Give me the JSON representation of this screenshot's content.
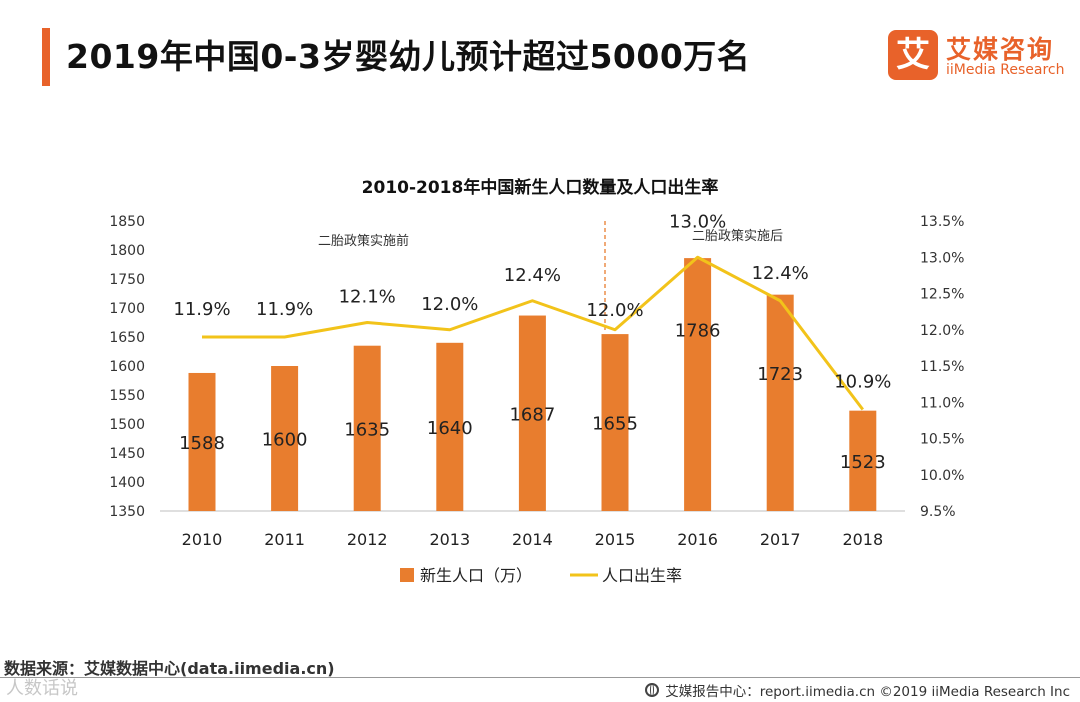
{
  "header": {
    "title": "2019年中国0-3岁婴幼儿预计超过5000万名",
    "accent_color": "#e8622a"
  },
  "logo": {
    "mark": "艾",
    "name": "艾媒咨询",
    "sub": "iiMedia Research",
    "color": "#e8622a"
  },
  "chart_data": {
    "type": "bar",
    "title": "2010-2018年中国新生人口数量及人口出生率",
    "categories": [
      "2010",
      "2011",
      "2012",
      "2013",
      "2014",
      "2015",
      "2016",
      "2017",
      "2018"
    ],
    "series": [
      {
        "name": "新生人口（万）",
        "type": "bar",
        "axis": "left",
        "color": "#e87d2e",
        "values": [
          1588,
          1600,
          1635,
          1640,
          1687,
          1655,
          1786,
          1723,
          1523
        ]
      },
      {
        "name": "人口出生率",
        "type": "line",
        "axis": "right",
        "color": "#f2c31a",
        "values": [
          11.9,
          11.9,
          12.1,
          12.0,
          12.4,
          12.0,
          13.0,
          12.4,
          10.9
        ],
        "labels": [
          "11.9%",
          "11.9%",
          "12.1%",
          "12.0%",
          "12.4%",
          "12.0%",
          "13.0%",
          "12.4%",
          "10.9%"
        ]
      }
    ],
    "y_left": {
      "min": 1350,
      "max": 1850,
      "ticks": [
        1350,
        1400,
        1450,
        1500,
        1550,
        1600,
        1650,
        1700,
        1750,
        1800,
        1850
      ]
    },
    "y_right": {
      "min": 9.5,
      "max": 13.5,
      "ticks": [
        "9.5%",
        "10.0%",
        "10.5%",
        "11.0%",
        "11.5%",
        "12.0%",
        "12.5%",
        "13.0%",
        "13.5%"
      ]
    },
    "annotations": {
      "before": "二胎政策实施前",
      "after": "二胎政策实施后",
      "divider_between": [
        "2015",
        "2016"
      ]
    },
    "grid": false,
    "legend_position": "bottom"
  },
  "footer": {
    "source": "数据来源：艾媒数据中心(data.iimedia.cn)",
    "watermark": "人数话说",
    "report": "艾媒报告中心：report.iimedia.cn  ©2019  iiMedia Research  Inc"
  }
}
